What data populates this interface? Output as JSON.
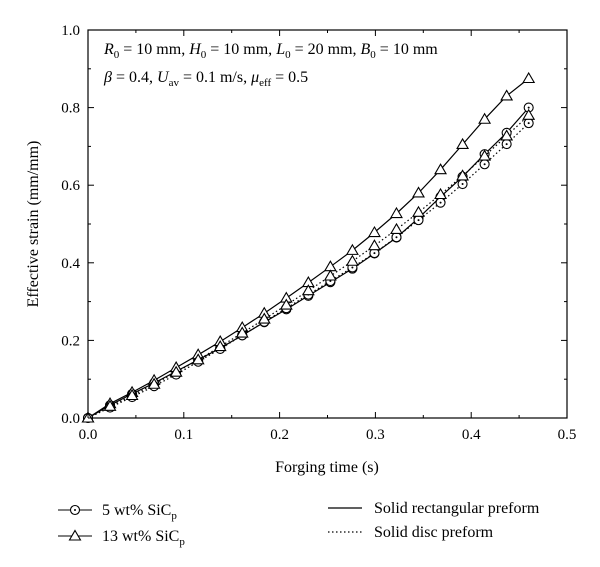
{
  "chart_data": {
    "type": "line",
    "xlabel": "Forging time (s)",
    "ylabel": "Effective strain (mm/mm)",
    "xlim": [
      0,
      0.5
    ],
    "ylim": [
      0,
      1.0
    ],
    "xticks": [
      "0.0",
      "0.1",
      "0.2",
      "0.3",
      "0.4",
      "0.5"
    ],
    "yticks": [
      "0.0",
      "0.2",
      "0.4",
      "0.6",
      "0.8",
      "1.0"
    ],
    "grid": false,
    "legend_position": "bottom",
    "annotation": {
      "line1": "R0 = 10 mm, H0 = 10 mm, L0 = 20 mm, B0 = 10 mm",
      "line2": "β = 0.4, Uav = 0.1 m/s, μeff = 0.5"
    },
    "legend": {
      "material_5": "5 wt% SiCp",
      "material_13": "13 wt% SiCp",
      "shape_rect": "Solid rectangular preform",
      "shape_disc": "Solid disc preform"
    },
    "series": [
      {
        "material": "5 wt% SiCp",
        "shape": "Solid rectangular preform",
        "marker": "circle",
        "linestyle": "solid",
        "x": [
          0,
          0.023,
          0.046,
          0.069,
          0.092,
          0.115,
          0.138,
          0.161,
          0.184,
          0.207,
          0.23,
          0.253,
          0.276,
          0.299,
          0.322,
          0.345,
          0.368,
          0.391,
          0.414,
          0.437,
          0.46
        ],
        "y": [
          0,
          0.033,
          0.062,
          0.09,
          0.12,
          0.15,
          0.18,
          0.213,
          0.247,
          0.28,
          0.315,
          0.35,
          0.385,
          0.424,
          0.465,
          0.515,
          0.57,
          0.622,
          0.68,
          0.735,
          0.8
        ]
      },
      {
        "material": "13 wt% SiCp",
        "shape": "Solid rectangular preform",
        "marker": "triangle",
        "linestyle": "solid",
        "x": [
          0,
          0.023,
          0.046,
          0.069,
          0.092,
          0.115,
          0.138,
          0.161,
          0.184,
          0.207,
          0.23,
          0.253,
          0.276,
          0.299,
          0.322,
          0.345,
          0.368,
          0.391,
          0.414,
          0.437,
          0.46
        ],
        "y": [
          0,
          0.037,
          0.066,
          0.097,
          0.13,
          0.163,
          0.197,
          0.233,
          0.27,
          0.309,
          0.349,
          0.39,
          0.432,
          0.478,
          0.527,
          0.58,
          0.64,
          0.705,
          0.77,
          0.83,
          0.875
        ]
      },
      {
        "material": "5 wt% SiCp",
        "shape": "Solid disc preform",
        "marker": "circle",
        "linestyle": "dotted",
        "x": [
          0,
          0.023,
          0.046,
          0.069,
          0.092,
          0.115,
          0.138,
          0.161,
          0.184,
          0.207,
          0.23,
          0.253,
          0.276,
          0.299,
          0.322,
          0.345,
          0.368,
          0.391,
          0.414,
          0.437,
          0.46
        ],
        "y": [
          0,
          0.027,
          0.054,
          0.082,
          0.112,
          0.145,
          0.178,
          0.213,
          0.248,
          0.283,
          0.318,
          0.353,
          0.388,
          0.425,
          0.466,
          0.51,
          0.555,
          0.603,
          0.654,
          0.706,
          0.76
        ]
      },
      {
        "material": "13 wt% SiCp",
        "shape": "Solid disc preform",
        "marker": "triangle",
        "linestyle": "dotted",
        "x": [
          0,
          0.023,
          0.046,
          0.069,
          0.092,
          0.115,
          0.138,
          0.161,
          0.184,
          0.207,
          0.23,
          0.253,
          0.276,
          0.299,
          0.322,
          0.345,
          0.368,
          0.391,
          0.414,
          0.437,
          0.46
        ],
        "y": [
          0,
          0.03,
          0.058,
          0.087,
          0.118,
          0.15,
          0.184,
          0.219,
          0.255,
          0.291,
          0.328,
          0.366,
          0.404,
          0.444,
          0.486,
          0.53,
          0.576,
          0.624,
          0.675,
          0.727,
          0.78
        ]
      }
    ]
  }
}
